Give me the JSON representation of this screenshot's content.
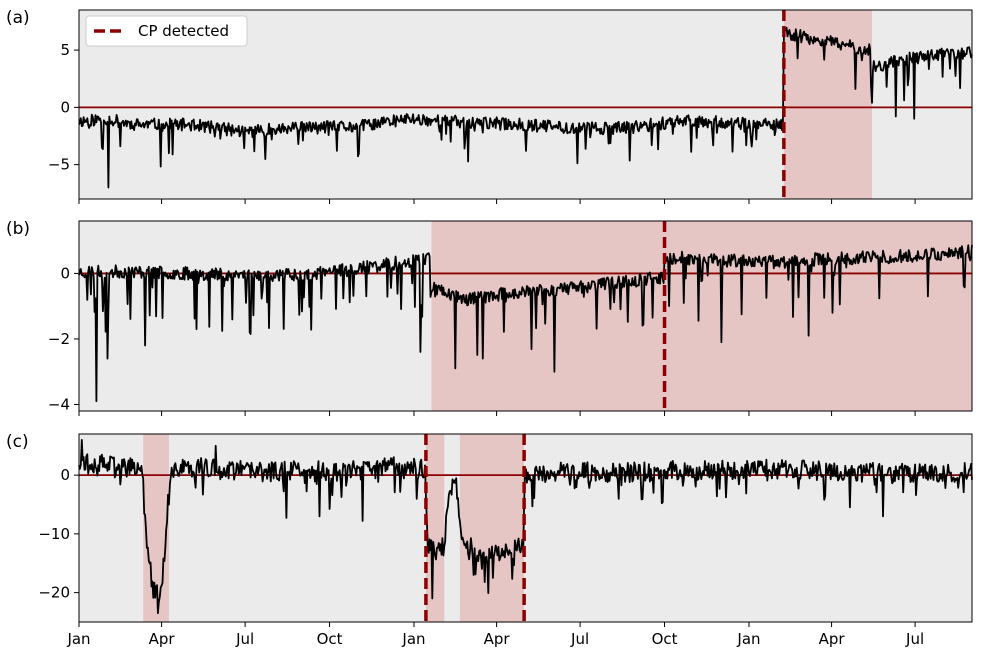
{
  "chart_data": {
    "type": "line",
    "x_ticks": [
      "Jan",
      "Apr",
      "Jul",
      "Oct",
      "Jan",
      "Apr",
      "Jul",
      "Oct",
      "Jan",
      "Apr",
      "Jul"
    ],
    "x_tick_days": [
      0,
      90,
      181,
      273,
      365,
      455,
      546,
      638,
      730,
      820,
      911
    ],
    "x_range_days": [
      0,
      973
    ],
    "legend": {
      "label": "CP detected",
      "placement": "top-left",
      "color": "#8b0000"
    },
    "colors": {
      "background": "#ebebeb",
      "shade": "#e6c5c5",
      "line": "#000000",
      "cp": "#8b0000",
      "zero_line": "#8b0000"
    },
    "panels": [
      {
        "label": "(a)",
        "ylim": [
          -8,
          8.5
        ],
        "yticks": [
          -5,
          0,
          5
        ],
        "yticklabels": [
          "−5",
          "0",
          "5"
        ],
        "shaded": [
          [
            768,
            864
          ]
        ],
        "cp_lines": [
          768
        ],
        "anchors": [
          [
            0,
            -1.2
          ],
          [
            30,
            -1.0
          ],
          [
            60,
            -1.5
          ],
          [
            120,
            -1.5
          ],
          [
            180,
            -2.1
          ],
          [
            240,
            -1.8
          ],
          [
            300,
            -1.7
          ],
          [
            360,
            -1.0
          ],
          [
            420,
            -1.3
          ],
          [
            480,
            -1.5
          ],
          [
            540,
            -1.8
          ],
          [
            600,
            -1.8
          ],
          [
            660,
            -1.1
          ],
          [
            700,
            -1.3
          ],
          [
            740,
            -1.5
          ],
          [
            767,
            -1.6
          ],
          [
            768,
            6.5
          ],
          [
            800,
            6.0
          ],
          [
            830,
            5.5
          ],
          [
            863,
            5.0
          ],
          [
            864,
            3.5
          ],
          [
            900,
            4.2
          ],
          [
            940,
            4.6
          ],
          [
            973,
            4.8
          ]
        ],
        "noise": 0.55,
        "spike_prob": 0.07,
        "spike_size": 1.6,
        "spikes": [
          [
            32,
            -7.0
          ],
          [
            45,
            -3.4
          ],
          [
            98,
            -4.0
          ],
          [
            281,
            -3.8
          ],
          [
            405,
            -3.0
          ],
          [
            420,
            -3.6
          ],
          [
            624,
            -3.3
          ],
          [
            846,
            1.6
          ],
          [
            864,
            0.4
          ],
          [
            890,
            -0.8
          ],
          [
            910,
            -1.0
          ]
        ],
        "seed": 11
      },
      {
        "label": "(b)",
        "ylim": [
          -4.2,
          1.6
        ],
        "yticks": [
          -4,
          -2,
          0
        ],
        "yticklabels": [
          "−4",
          "−2",
          "0"
        ],
        "shaded": [
          [
            384,
            973
          ]
        ],
        "cp_lines": [
          638
        ],
        "anchors": [
          [
            0,
            0.05
          ],
          [
            60,
            0.05
          ],
          [
            120,
            0.0
          ],
          [
            200,
            -0.05
          ],
          [
            260,
            0.0
          ],
          [
            320,
            0.2
          ],
          [
            383,
            0.5
          ],
          [
            384,
            -0.4
          ],
          [
            420,
            -0.8
          ],
          [
            470,
            -0.6
          ],
          [
            520,
            -0.5
          ],
          [
            580,
            -0.3
          ],
          [
            637,
            -0.1
          ],
          [
            638,
            0.5
          ],
          [
            700,
            0.4
          ],
          [
            760,
            0.35
          ],
          [
            820,
            0.45
          ],
          [
            880,
            0.5
          ],
          [
            940,
            0.6
          ],
          [
            973,
            0.7
          ]
        ],
        "noise": 0.2,
        "spike_prob": 0.12,
        "spike_size": 0.9,
        "spikes": [
          [
            19,
            -3.9
          ],
          [
            31,
            -2.6
          ],
          [
            72,
            -2.2
          ],
          [
            186,
            -1.8
          ],
          [
            372,
            -2.4
          ],
          [
            410,
            -2.9
          ],
          [
            440,
            -2.6
          ],
          [
            518,
            -3.0
          ],
          [
            700,
            -2.1
          ],
          [
            795,
            -1.9
          ],
          [
            925,
            -0.7
          ]
        ],
        "seed": 23
      },
      {
        "label": "(c)",
        "ylim": [
          -25,
          7
        ],
        "yticks": [
          -20,
          -10,
          0
        ],
        "yticklabels": [
          "−20",
          "−10",
          "0"
        ],
        "shaded": [
          [
            70,
            98
          ],
          [
            378,
            398
          ],
          [
            415,
            485
          ]
        ],
        "cp_lines": [
          378,
          485
        ],
        "anchors": [
          [
            0,
            2.5
          ],
          [
            40,
            1.5
          ],
          [
            69,
            1.0
          ],
          [
            72,
            -8.0
          ],
          [
            80,
            -19.0
          ],
          [
            88,
            -21.0
          ],
          [
            94,
            -13.0
          ],
          [
            98,
            -1.0
          ],
          [
            110,
            1.5
          ],
          [
            160,
            1.0
          ],
          [
            200,
            0.5
          ],
          [
            240,
            1.0
          ],
          [
            280,
            0.5
          ],
          [
            320,
            1.0
          ],
          [
            350,
            1.5
          ],
          [
            377,
            1.2
          ],
          [
            380,
            -12.0
          ],
          [
            390,
            -13.0
          ],
          [
            398,
            -12.0
          ],
          [
            403,
            -3.0
          ],
          [
            410,
            0.0
          ],
          [
            416,
            -11.0
          ],
          [
            440,
            -14.0
          ],
          [
            470,
            -13.0
          ],
          [
            484,
            -12.0
          ],
          [
            486,
            0.5
          ],
          [
            520,
            0.5
          ],
          [
            600,
            0.5
          ],
          [
            680,
            1.0
          ],
          [
            760,
            1.0
          ],
          [
            840,
            0.5
          ],
          [
            900,
            0.5
          ],
          [
            973,
            0.5
          ]
        ],
        "noise": 1.7,
        "spike_prob": 0.1,
        "spike_size": 2.5,
        "spikes": [
          [
            3,
            6.0
          ],
          [
            86,
            -23.5
          ],
          [
            149,
            5.0
          ],
          [
            226,
            -7.3
          ],
          [
            262,
            -7.0
          ],
          [
            309,
            -7.8
          ],
          [
            385,
            -21.0
          ],
          [
            430,
            -17.0
          ],
          [
            451,
            -17.5
          ],
          [
            494,
            -5.3
          ],
          [
            840,
            -5.5
          ],
          [
            876,
            -7.0
          ]
        ],
        "seed": 37
      }
    ]
  }
}
